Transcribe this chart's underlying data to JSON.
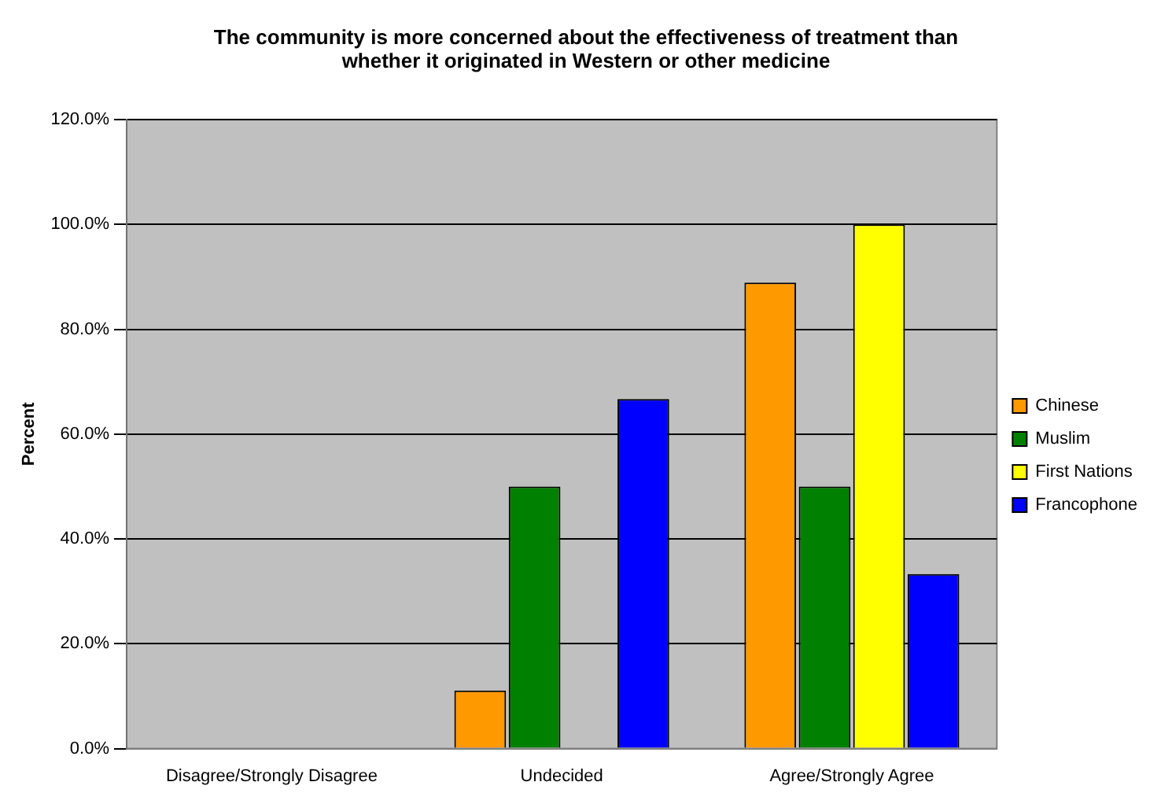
{
  "chart_data": {
    "type": "bar",
    "title": "The community is more concerned about the effectiveness of treatment than whether it originated in Western or other medicine",
    "ylabel": "Percent",
    "categories": [
      "Disagree/Strongly Disagree",
      "Undecided",
      "Agree/Strongly Agree"
    ],
    "series": [
      {
        "name": "Chinese",
        "color": "#ff9900",
        "values": [
          0,
          11.1,
          88.9
        ]
      },
      {
        "name": "Muslim",
        "color": "#008000",
        "values": [
          0,
          50,
          50
        ]
      },
      {
        "name": "First Nations",
        "color": "#ffff00",
        "values": [
          0,
          0,
          100
        ]
      },
      {
        "name": "Francophone",
        "color": "#0000ff",
        "values": [
          0,
          66.7,
          33.3
        ]
      }
    ],
    "ylim": [
      0,
      120
    ],
    "yticks": [
      {
        "value": 0,
        "label": "0.0%"
      },
      {
        "value": 20,
        "label": "20.0%"
      },
      {
        "value": 40,
        "label": "40.0%"
      },
      {
        "value": 60,
        "label": "60.0%"
      },
      {
        "value": 80,
        "label": "80.0%"
      },
      {
        "value": 100,
        "label": "100.0%"
      },
      {
        "value": 120,
        "label": "120.0%"
      }
    ],
    "grid": "y",
    "legend": "right"
  }
}
